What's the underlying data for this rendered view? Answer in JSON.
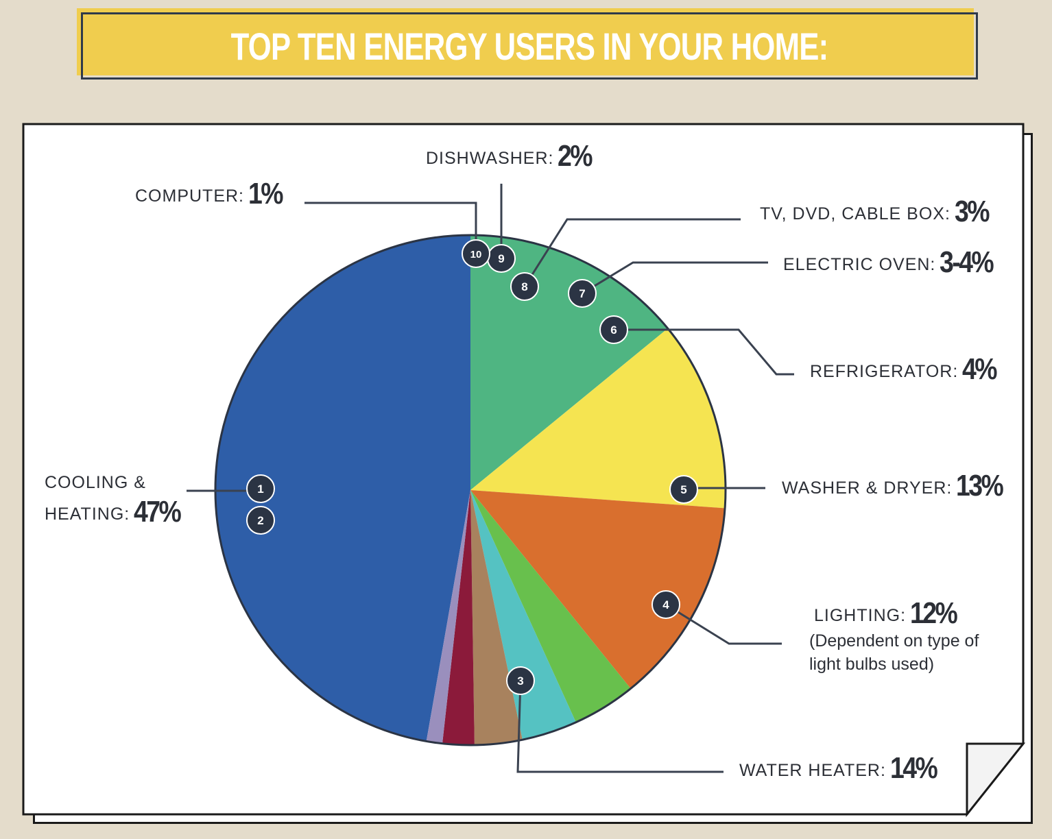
{
  "title": "TOP TEN ENERGY USERS IN YOUR HOME:",
  "chart_data": {
    "type": "pie",
    "title": "TOP TEN ENERGY USERS IN YOUR HOME:",
    "slices": [
      {
        "number": "1",
        "label": "COOLING &",
        "value": 47,
        "color": "#2e5ea8"
      },
      {
        "number": "3",
        "label": "WATER HEATER",
        "value": 14,
        "color": "#4fb582"
      },
      {
        "number": "4",
        "label": "LIGHTING",
        "value": 12,
        "color": "#f5e451"
      },
      {
        "number": "5",
        "label": "WASHER & DRYER",
        "value": 13,
        "color": "#d96f2e"
      },
      {
        "number": "6",
        "label": "REFRIGERATOR",
        "value": 4,
        "color": "#68c04d"
      },
      {
        "number": "7",
        "label": "ELECTRIC OVEN",
        "value": 3.5,
        "color": "#55c2c2"
      },
      {
        "number": "8",
        "label": "TV, DVD, CABLE BOX",
        "value": 3,
        "color": "#a8825e"
      },
      {
        "number": "9",
        "label": "DISHWASHER",
        "value": 2,
        "color": "#8b1a3a"
      },
      {
        "number": "10",
        "label": "COMPUTER",
        "value": 1,
        "color": "#9a8fbd"
      }
    ],
    "markers": [
      "1",
      "2",
      "3",
      "4",
      "5",
      "6",
      "7",
      "8",
      "9",
      "10"
    ],
    "labels": {
      "cooling_line1": "COOLING &",
      "cooling_line2": "HEATING:",
      "cooling_value": "47%",
      "water_name": "WATER HEATER:",
      "water_value": "14%",
      "lighting_name": "LIGHTING:",
      "lighting_value": "12%",
      "lighting_note_1": "(Dependent on type of",
      "lighting_note_2": "light bulbs used)",
      "washer_name": "WASHER & DRYER:",
      "washer_value": "13%",
      "fridge_name": "REFRIGERATOR:",
      "fridge_value": "4%",
      "oven_name": "ELECTRIC OVEN:",
      "oven_value": "3-4%",
      "tv_name": "TV, DVD, CABLE BOX:",
      "tv_value": "3%",
      "dish_name": "DISHWASHER:",
      "dish_value": "2%",
      "computer_name": "COMPUTER:",
      "computer_value": "1%"
    },
    "colors": {
      "marker": "#2b3444",
      "leader": "#3a4250",
      "outline": "#2b3444"
    }
  }
}
